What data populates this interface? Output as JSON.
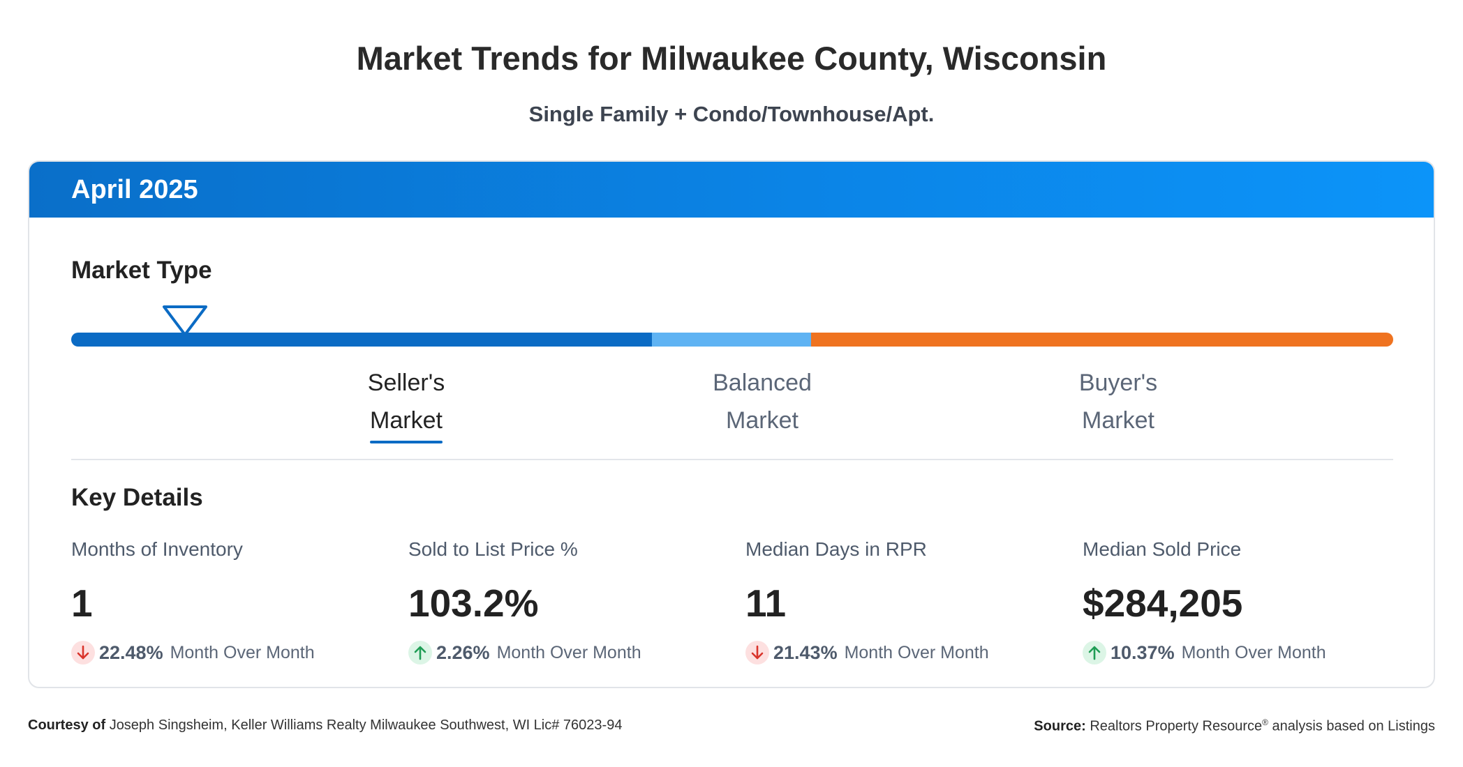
{
  "header": {
    "title": "Market Trends for Milwaukee County, Wisconsin",
    "subtitle": "Single Family + Condo/Townhouse/Apt."
  },
  "card": {
    "period": "April 2025",
    "market_type_label": "Market Type",
    "market_indicator_position": 0.086,
    "market_segments": [
      {
        "label_line1": "Seller's",
        "label_line2": "Market",
        "color": "#0b6bc4",
        "active": true
      },
      {
        "label_line1": "Balanced",
        "label_line2": "Market",
        "color": "#5fb3f3",
        "active": false
      },
      {
        "label_line1": "Buyer's",
        "label_line2": "Market",
        "color": "#ef7320",
        "active": false
      }
    ],
    "key_details_label": "Key Details",
    "metrics": [
      {
        "label": "Months of Inventory",
        "value": "1",
        "direction": "down",
        "change": "22.48%",
        "change_text": "Month Over Month"
      },
      {
        "label": "Sold to List Price %",
        "value": "103.2%",
        "direction": "up",
        "change": "2.26%",
        "change_text": "Month Over Month"
      },
      {
        "label": "Median Days in RPR",
        "value": "11",
        "direction": "down",
        "change": "21.43%",
        "change_text": "Month Over Month"
      },
      {
        "label": "Median Sold Price",
        "value": "$284,205",
        "direction": "up",
        "change": "10.37%",
        "change_text": "Month Over Month"
      }
    ]
  },
  "footer": {
    "courtesy_prefix": "Courtesy of",
    "courtesy_text": "Joseph Singsheim, Keller Williams Realty Milwaukee Southwest, WI Lic# 76023-94",
    "source_prefix": "Source:",
    "source_text_a": "Realtors Property Resource",
    "source_reg": "®",
    "source_text_b": "analysis based on Listings"
  },
  "colors": {
    "header_gradient_start": "#0a6fc9",
    "header_gradient_end": "#0c94f9",
    "down_arrow": "#d9342b",
    "up_arrow": "#1f9d55"
  }
}
